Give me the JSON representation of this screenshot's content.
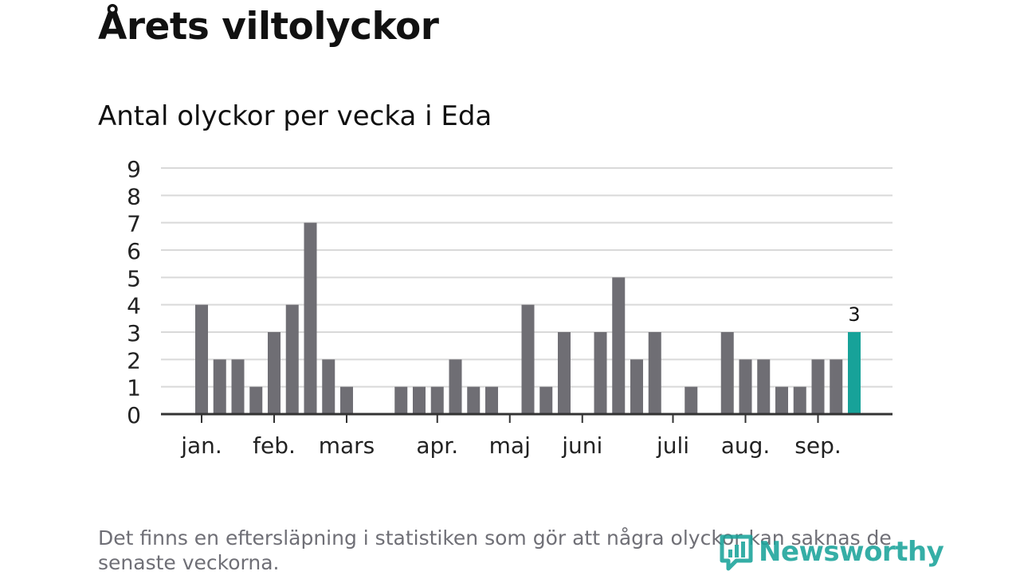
{
  "header": {
    "title": "Årets viltolyckor",
    "subtitle": "Antal olyckor per vecka i Eda"
  },
  "footnote": "Det finns en eftersläpning i statistiken som gör att några olyckor kan saknas de senaste veckorna.",
  "brand": {
    "name": "Newsworthy",
    "icon": "bar-chart-icon",
    "color": "#1aa39a"
  },
  "chart_data": {
    "type": "bar",
    "title": "Antal olyckor per vecka i Eda",
    "xlabel": "",
    "ylabel": "",
    "ylim": [
      0,
      9
    ],
    "yticks": [
      0,
      1,
      2,
      3,
      4,
      5,
      6,
      7,
      8,
      9
    ],
    "grid": true,
    "values": [
      4,
      2,
      2,
      1,
      3,
      4,
      7,
      2,
      1,
      0,
      0,
      1,
      1,
      1,
      2,
      1,
      1,
      0,
      4,
      1,
      3,
      0,
      3,
      5,
      2,
      3,
      0,
      1,
      0,
      3,
      2,
      2,
      1,
      1,
      2,
      2,
      3
    ],
    "month_labels": [
      {
        "label": "jan.",
        "week_index": 0
      },
      {
        "label": "feb.",
        "week_index": 4
      },
      {
        "label": "mars",
        "week_index": 8
      },
      {
        "label": "apr.",
        "week_index": 13
      },
      {
        "label": "maj",
        "week_index": 17
      },
      {
        "label": "juni",
        "week_index": 21
      },
      {
        "label": "juli",
        "week_index": 26
      },
      {
        "label": "aug.",
        "week_index": 30
      },
      {
        "label": "sep.",
        "week_index": 34
      }
    ],
    "highlight": {
      "week_index": 36,
      "label": "3",
      "color": "#17a299"
    },
    "bar_color": "#6f6e74",
    "grid_color": "#d9d9d9",
    "axis_color": "#333333"
  }
}
